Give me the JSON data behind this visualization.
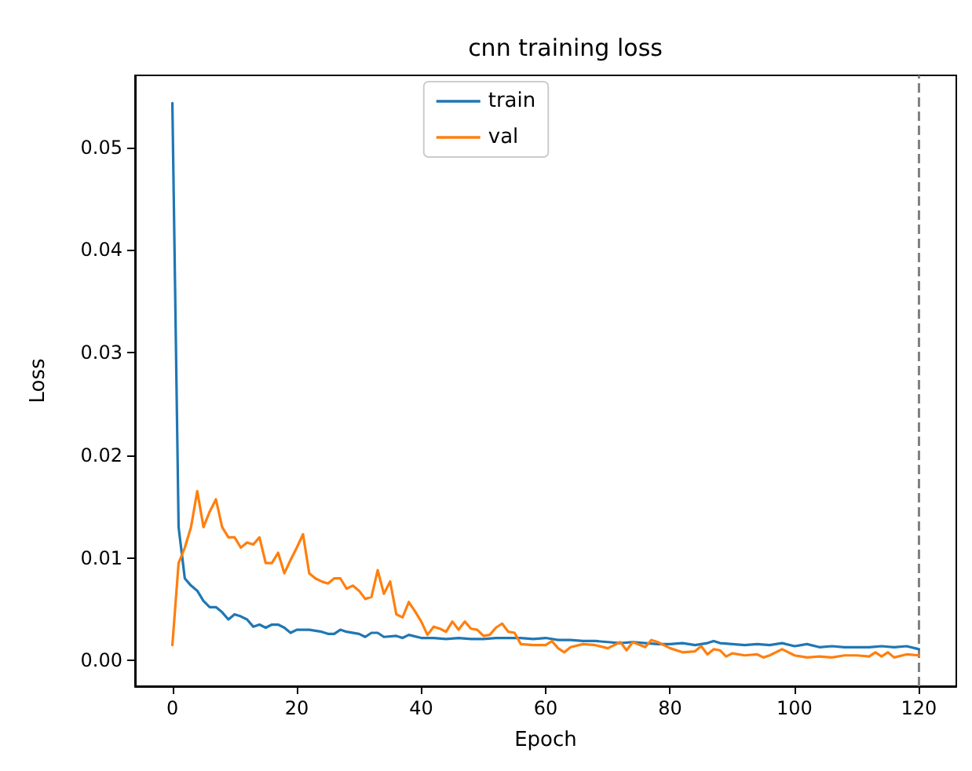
{
  "chart_data": {
    "type": "line",
    "title": "cnn training loss",
    "xlabel": "Epoch",
    "ylabel": "Loss",
    "legend": "top",
    "grid": false,
    "xlim": [
      -6,
      126
    ],
    "xticks": [
      0,
      20,
      40,
      60,
      80,
      100,
      120
    ],
    "ylim": [
      -0.0025,
      0.057
    ],
    "yticks": [
      {
        "value": 0,
        "label": "0.00"
      },
      {
        "value": 0.01,
        "label": "0.01"
      },
      {
        "value": 0.02,
        "label": "0.02"
      },
      {
        "value": 0.03,
        "label": "0.03"
      },
      {
        "value": 0.04,
        "label": "0.04"
      },
      {
        "value": 0.05,
        "label": "0.05"
      }
    ],
    "ref_lines": [
      {
        "axis": "x",
        "value": 120,
        "label": null,
        "color": "#808080",
        "line_style": "dashed"
      }
    ],
    "series": [
      {
        "name": "train",
        "color": "#1f77b4",
        "x": [
          0,
          1,
          2,
          3,
          4,
          5,
          6,
          7,
          8,
          9,
          10,
          11,
          12,
          13,
          14,
          15,
          16,
          17,
          18,
          19,
          20,
          22,
          24,
          25,
          26,
          27,
          28,
          30,
          31,
          32,
          33,
          34,
          36,
          37,
          38,
          40,
          42,
          44,
          46,
          48,
          50,
          52,
          54,
          56,
          58,
          60,
          62,
          64,
          66,
          68,
          70,
          72,
          74,
          76,
          78,
          80,
          82,
          84,
          86,
          87,
          88,
          90,
          92,
          94,
          96,
          98,
          100,
          102,
          104,
          106,
          108,
          110,
          112,
          114,
          116,
          118,
          120
        ],
        "values": [
          0.0543,
          0.013,
          0.008,
          0.0073,
          0.0068,
          0.0058,
          0.0052,
          0.0052,
          0.0047,
          0.004,
          0.0045,
          0.0043,
          0.004,
          0.0033,
          0.0035,
          0.0032,
          0.0035,
          0.0035,
          0.0032,
          0.0027,
          0.003,
          0.003,
          0.0028,
          0.0026,
          0.0026,
          0.003,
          0.0028,
          0.0026,
          0.0023,
          0.0027,
          0.0027,
          0.0023,
          0.0024,
          0.0022,
          0.0025,
          0.0022,
          0.0022,
          0.0021,
          0.0022,
          0.0021,
          0.0021,
          0.0022,
          0.0022,
          0.0022,
          0.0021,
          0.0022,
          0.002,
          0.002,
          0.0019,
          0.0019,
          0.0018,
          0.0017,
          0.0018,
          0.0017,
          0.0016,
          0.0016,
          0.0017,
          0.0015,
          0.0017,
          0.0019,
          0.0017,
          0.0016,
          0.0015,
          0.0016,
          0.0015,
          0.0017,
          0.0014,
          0.0016,
          0.0013,
          0.0014,
          0.0013,
          0.0013,
          0.0013,
          0.0014,
          0.0013,
          0.0014,
          0.0011
        ]
      },
      {
        "name": "val",
        "color": "#ff7f0e",
        "x": [
          0,
          1,
          2,
          3,
          4,
          5,
          6,
          7,
          8,
          9,
          10,
          11,
          12,
          13,
          14,
          15,
          16,
          17,
          18,
          19,
          20,
          21,
          22,
          23,
          24,
          25,
          26,
          27,
          28,
          29,
          30,
          31,
          32,
          33,
          34,
          35,
          36,
          37,
          38,
          39,
          40,
          41,
          42,
          43,
          44,
          45,
          46,
          47,
          48,
          49,
          50,
          51,
          52,
          53,
          54,
          55,
          56,
          58,
          60,
          61,
          62,
          63,
          64,
          66,
          68,
          70,
          72,
          73,
          74,
          76,
          77,
          78,
          80,
          82,
          84,
          85,
          86,
          87,
          88,
          89,
          90,
          92,
          94,
          95,
          96,
          98,
          100,
          102,
          104,
          106,
          108,
          110,
          112,
          113,
          114,
          115,
          116,
          118,
          120
        ],
        "values": [
          0.0015,
          0.0095,
          0.011,
          0.013,
          0.0165,
          0.013,
          0.0145,
          0.0157,
          0.013,
          0.012,
          0.012,
          0.011,
          0.0115,
          0.0113,
          0.012,
          0.0095,
          0.0095,
          0.0105,
          0.0085,
          0.0098,
          0.011,
          0.0123,
          0.0085,
          0.008,
          0.0077,
          0.0075,
          0.008,
          0.008,
          0.007,
          0.0073,
          0.0068,
          0.006,
          0.0062,
          0.0088,
          0.0065,
          0.0077,
          0.0045,
          0.0042,
          0.0057,
          0.0048,
          0.0038,
          0.0025,
          0.0033,
          0.0031,
          0.0028,
          0.0038,
          0.003,
          0.0038,
          0.0031,
          0.003,
          0.0024,
          0.0025,
          0.0032,
          0.0036,
          0.0028,
          0.0027,
          0.0016,
          0.0015,
          0.0015,
          0.0019,
          0.0012,
          0.0008,
          0.0013,
          0.0016,
          0.0015,
          0.0012,
          0.0018,
          0.001,
          0.0018,
          0.0013,
          0.002,
          0.0018,
          0.0012,
          0.0008,
          0.0009,
          0.0014,
          0.0006,
          0.0011,
          0.001,
          0.0004,
          0.0007,
          0.0005,
          0.0006,
          0.0003,
          0.0005,
          0.0011,
          0.0005,
          0.0003,
          0.0004,
          0.0003,
          0.0005,
          0.0005,
          0.0004,
          0.0008,
          0.0004,
          0.0008,
          0.0003,
          0.0006,
          0.0005
        ]
      }
    ]
  }
}
